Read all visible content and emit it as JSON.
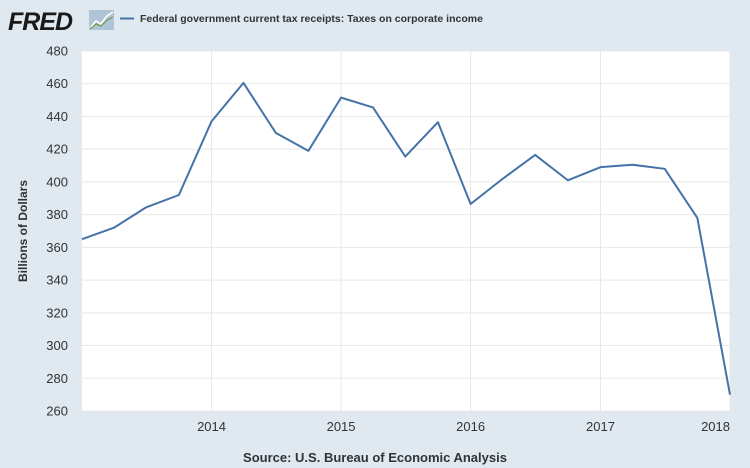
{
  "header": {
    "logo_text": "FRED",
    "legend_label": "Federal government current tax receipts: Taxes on corporate income"
  },
  "source_text": "Source: U.S. Bureau of Economic Analysis",
  "colors": {
    "background": "#e1e9f0",
    "plot_background": "#ffffff",
    "line": "#4572a7",
    "grid": "#e8e8e8"
  },
  "chart_data": {
    "type": "line",
    "title": "",
    "xlabel": "",
    "ylabel": "Billions of Dollars",
    "ylim": [
      260,
      480
    ],
    "yticks": [
      260,
      280,
      300,
      320,
      340,
      360,
      380,
      400,
      420,
      440,
      460,
      480
    ],
    "x_ticks": [
      "2014",
      "2015",
      "2016",
      "2017",
      "2018"
    ],
    "grid": true,
    "legend_position": "top-left",
    "series": [
      {
        "name": "Federal government current tax receipts: Taxes on corporate income",
        "x": [
          "2013-01-01",
          "2013-04-01",
          "2013-07-01",
          "2013-10-01",
          "2014-01-01",
          "2014-04-01",
          "2014-07-01",
          "2014-10-01",
          "2015-01-01",
          "2015-04-01",
          "2015-07-01",
          "2015-10-01",
          "2016-01-01",
          "2016-04-01",
          "2016-07-01",
          "2016-10-01",
          "2017-01-01",
          "2017-04-01",
          "2017-07-01",
          "2017-10-01",
          "2018-01-01"
        ],
        "values": [
          365,
          372,
          384.5,
          392,
          437,
          460.5,
          430,
          419,
          451.5,
          445.5,
          415.5,
          436.5,
          386.5,
          402,
          416.5,
          401,
          409,
          410.5,
          408,
          378,
          270
        ]
      }
    ]
  }
}
